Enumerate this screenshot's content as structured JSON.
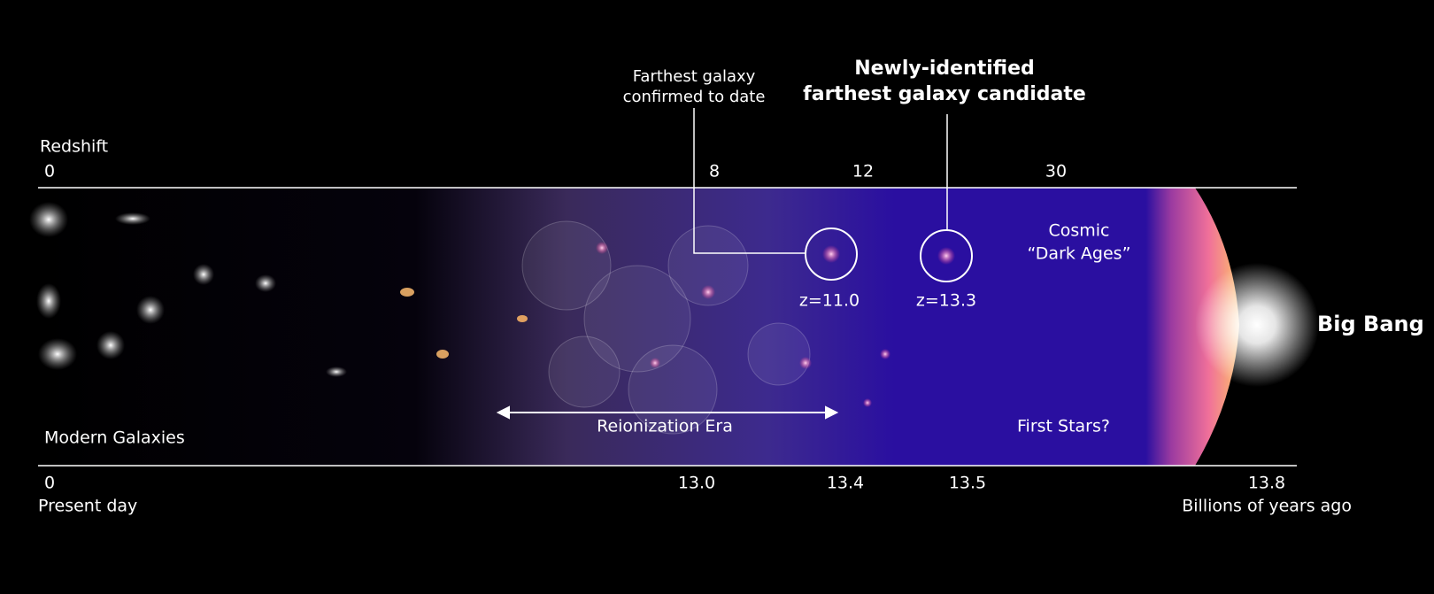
{
  "redshift_axis": {
    "label": "Redshift",
    "ticks": [
      "0",
      "8",
      "12",
      "30"
    ]
  },
  "time_axis": {
    "ticks": [
      "0",
      "13.0",
      "13.4",
      "13.5",
      "13.8"
    ],
    "start_label": "Present day",
    "end_label": "Billions of years ago"
  },
  "annotations": {
    "confirmed": {
      "lines": [
        "Farthest galaxy",
        "confirmed to date"
      ],
      "redshift": "z=11.0"
    },
    "candidate": {
      "lines": [
        "Newly-identified",
        "farthest galaxy candidate"
      ],
      "redshift": "z=13.3"
    }
  },
  "regions": {
    "modern": "Modern Galaxies",
    "reionization": "Reionization Era",
    "dark_ages": [
      "Cosmic",
      "“Dark Ages”"
    ],
    "first_stars": "First Stars?",
    "big_bang": "Big Bang"
  }
}
